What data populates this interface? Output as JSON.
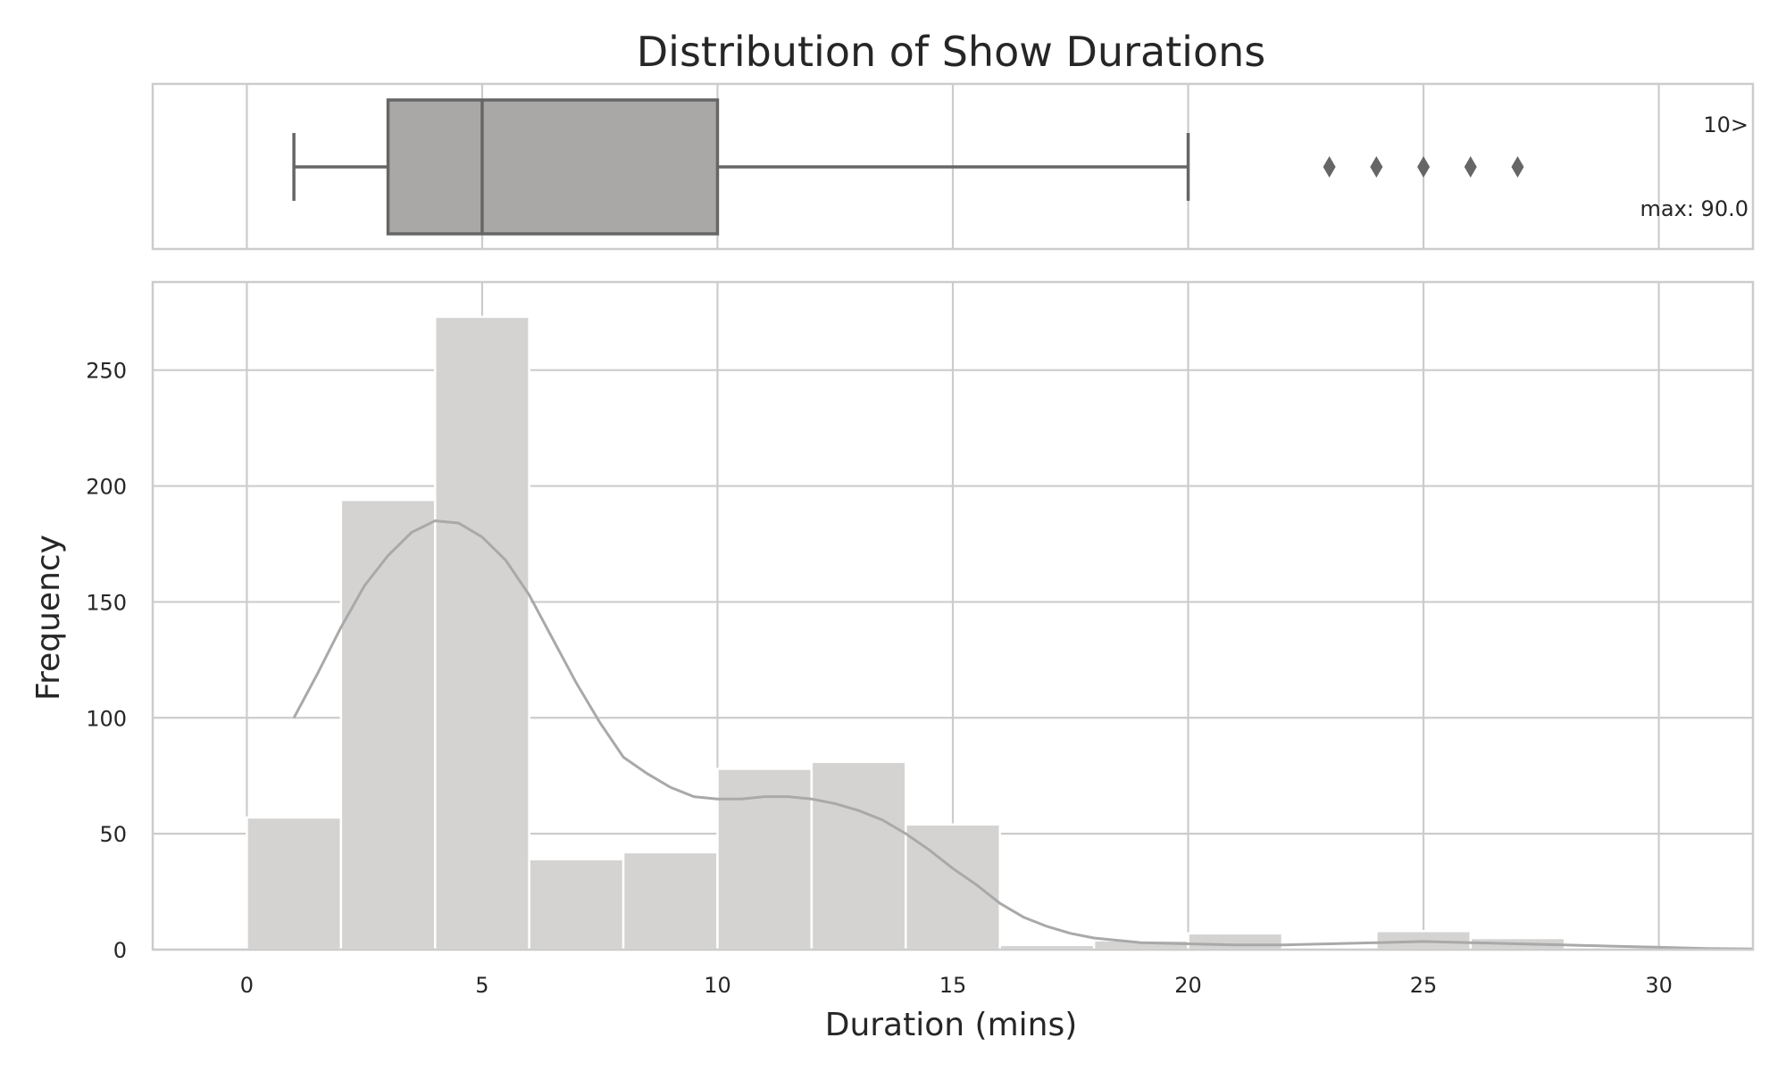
{
  "chart_data": [
    {
      "type": "box",
      "title": "Distribution of Show Durations",
      "orientation": "horizontal",
      "stats": {
        "whisker_low": 1,
        "q1": 3,
        "median": 5,
        "q3": 10,
        "whisker_high": 20
      },
      "outliers": [
        23,
        24,
        25,
        26,
        27
      ],
      "annotations": [
        {
          "text": "10>",
          "placement": "top-right"
        },
        {
          "text": "max: 90.0",
          "placement": "bottom-right"
        }
      ],
      "xlim": [
        -2,
        32
      ],
      "grid": true
    },
    {
      "type": "bar",
      "subtype": "histogram",
      "xlabel": "Duration (mins)",
      "ylabel": "Frequency",
      "xlim": [
        -2,
        32
      ],
      "ylim": [
        0,
        288
      ],
      "xticks": [
        0,
        5,
        10,
        15,
        20,
        25,
        30
      ],
      "yticks": [
        0,
        50,
        100,
        150,
        200,
        250
      ],
      "bins": [
        {
          "start": 0,
          "end": 2,
          "count": 57
        },
        {
          "start": 2,
          "end": 4,
          "count": 194
        },
        {
          "start": 4,
          "end": 6,
          "count": 273
        },
        {
          "start": 6,
          "end": 8,
          "count": 39
        },
        {
          "start": 8,
          "end": 10,
          "count": 42
        },
        {
          "start": 10,
          "end": 12,
          "count": 78
        },
        {
          "start": 12,
          "end": 14,
          "count": 81
        },
        {
          "start": 14,
          "end": 16,
          "count": 54
        },
        {
          "start": 16,
          "end": 18,
          "count": 2
        },
        {
          "start": 18,
          "end": 20,
          "count": 4
        },
        {
          "start": 20,
          "end": 22,
          "count": 7
        },
        {
          "start": 22,
          "end": 24,
          "count": 0
        },
        {
          "start": 24,
          "end": 26,
          "count": 8
        },
        {
          "start": 26,
          "end": 28,
          "count": 5
        }
      ],
      "kde": {
        "x": [
          1,
          1.5,
          2,
          2.5,
          3,
          3.5,
          4,
          4.5,
          5,
          5.5,
          6,
          6.5,
          7,
          7.5,
          8,
          8.5,
          9,
          9.5,
          10,
          10.5,
          11,
          11.5,
          12,
          12.5,
          13,
          13.5,
          14,
          14.5,
          15,
          15.5,
          16,
          16.5,
          17,
          17.5,
          18,
          18.5,
          19,
          20,
          21,
          22,
          23,
          24,
          25,
          26,
          27,
          28,
          29,
          30,
          31,
          32
        ],
        "y": [
          100,
          119,
          139,
          157,
          170,
          180,
          185,
          184,
          178,
          168,
          153,
          134,
          115,
          98,
          83,
          76,
          70,
          66,
          65,
          65,
          66,
          66,
          65,
          63,
          60,
          56,
          50,
          43,
          35,
          28,
          20,
          14,
          10,
          7,
          5,
          4,
          3,
          2.5,
          2,
          2,
          2.5,
          3,
          3.5,
          3,
          2.5,
          2,
          1.5,
          1,
          0.5,
          0.3
        ]
      },
      "grid": true
    }
  ]
}
